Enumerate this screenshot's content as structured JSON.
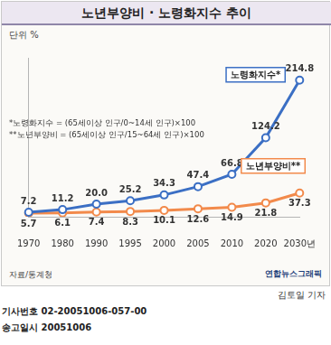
{
  "chart_data": {
    "type": "line",
    "title": "노년부양비 · 노령화지수 추이",
    "subtitle": "단위 %",
    "categories": [
      "1970",
      "1980",
      "1990",
      "1995",
      "2000",
      "2005",
      "2010",
      "2020",
      "2030년"
    ],
    "series": [
      {
        "name": "노령화지수*",
        "color": "#3b6fc4",
        "marker": "circle",
        "values": [
          7.2,
          11.2,
          20.0,
          25.2,
          34.3,
          47.4,
          66.8,
          124.2,
          214.8
        ],
        "value_labels": [
          "7.2",
          "11.2",
          "20.0",
          "25.2",
          "34.3",
          "47.4",
          "66.8",
          "124.2",
          "214.8"
        ]
      },
      {
        "name": "노년부양비**",
        "color": "#f28a4b",
        "marker": "circle",
        "values": [
          5.7,
          6.1,
          7.4,
          8.3,
          10.1,
          12.6,
          14.9,
          21.8,
          37.3
        ],
        "value_labels": [
          "5.7",
          "6.1",
          "7.4",
          "8.3",
          "10.1",
          "12.6",
          "14.9",
          "21.8",
          "37.3"
        ]
      }
    ],
    "ylim": [
      0,
      250
    ],
    "grid": false,
    "data_labels": true,
    "tick_labels": "x",
    "annotations": [
      "*노령화지수 = (65세이상 인구/0~14세 인구)×100",
      "**노년부양비 = (65세이상 인구/15~64세 인구)×100",
      "자료/통계청",
      "연합뉴스그래픽",
      "김토일 기자",
      "기사번호 02-20051006-057-00",
      "송고일시 20051006"
    ]
  }
}
